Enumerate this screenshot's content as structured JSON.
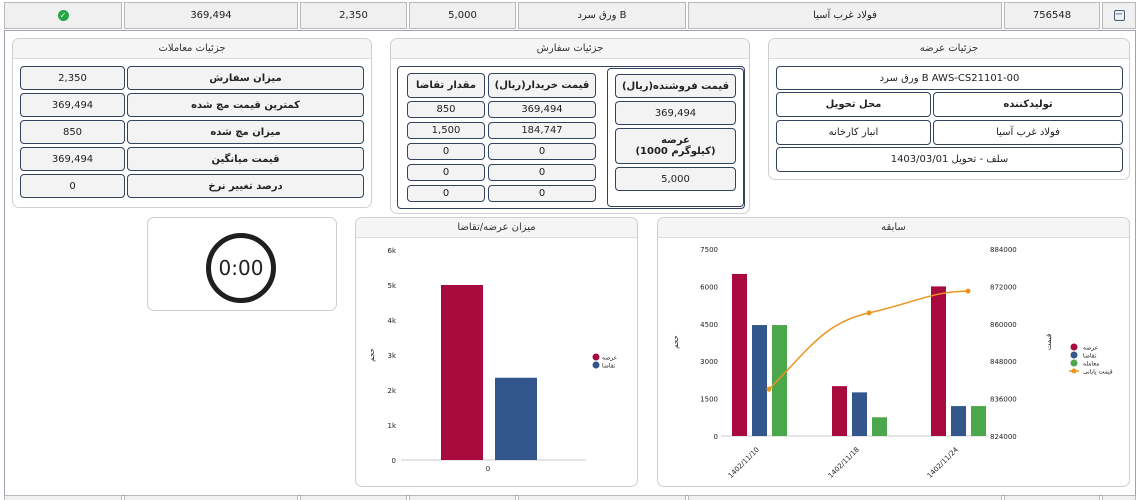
{
  "top_row": {
    "id": "756548",
    "supplier": "فولاد غرب آسیا",
    "product": "ورق سرد B",
    "quantity": "5,000",
    "volume": "2,350",
    "price": "369,494"
  },
  "transactions": {
    "title": "جزئیات معاملات",
    "rows": [
      {
        "label": "میزان سفارش",
        "value": "2,350"
      },
      {
        "label": "کمترین قیمت مچ شده",
        "value": "369,494"
      },
      {
        "label": "میزان مچ شده",
        "value": "850"
      },
      {
        "label": "قیمت میانگین",
        "value": "369,494"
      },
      {
        "label": "درصد تغییر نرخ",
        "value": "0"
      }
    ]
  },
  "order": {
    "title": "جزئیات سفارش",
    "seller_price_label": "قیمت فروشنده(ریال)",
    "seller_price": "369,494",
    "supply_label_1": "عرضه",
    "supply_label_2": "(1000 کیلوگرم)",
    "supply": "5,000",
    "buyer_price_label": "قیمت خریدار(ریال)",
    "demand_label": "مقدار تقاضا",
    "rows": [
      {
        "price": "369,494",
        "qty": "850"
      },
      {
        "price": "184,747",
        "qty": "1,500"
      },
      {
        "price": "0",
        "qty": "0"
      },
      {
        "price": "0",
        "qty": "0"
      },
      {
        "price": "0",
        "qty": "0"
      }
    ]
  },
  "offer": {
    "title": "جزئیات عرضه",
    "product_code": "ورق سرد B AWS-CS21101-00",
    "producer_label": "تولیدکننده",
    "location_label": "محل تحویل",
    "producer": "فولاد غرب آسیا",
    "location": "انبار کارخانه",
    "delivery": "سلف - تحویل 1403/03/01"
  },
  "timer": {
    "value": "0:00"
  },
  "colors": {
    "supply": "#a90a3e",
    "demand": "#33568c",
    "traded": "#4ca64c",
    "price": "#e8951e"
  },
  "chart_data": [
    {
      "type": "bar",
      "title": "میزان عرضه/تقاضا",
      "ylabel": "حجم",
      "categories": [
        "0"
      ],
      "series": [
        {
          "name": "عرضه",
          "values": [
            5000
          ]
        },
        {
          "name": "تقاضا",
          "values": [
            2350
          ]
        }
      ],
      "ylim": [
        0,
        6000
      ],
      "yticks": [
        "0",
        "1k",
        "2k",
        "3k",
        "4k",
        "5k",
        "6k"
      ],
      "grid": false,
      "legend": "right"
    },
    {
      "type": "bar",
      "title": "سابقه",
      "categories": [
        "1402/11/10",
        "1402/11/18",
        "1402/11/24"
      ],
      "series": [
        {
          "name": "عرضه",
          "values": [
            6500,
            2000,
            6000
          ]
        },
        {
          "name": "تقاضا",
          "values": [
            4450,
            1750,
            1200
          ]
        },
        {
          "name": "معامله",
          "values": [
            4450,
            750,
            1200
          ]
        },
        {
          "name": "قیمت پایانی",
          "type": "line",
          "axis": "right",
          "values": [
            839000,
            863500,
            870500
          ]
        }
      ],
      "ylabel": "حجم",
      "ylim": [
        0,
        7500
      ],
      "yticks": [
        "0",
        "1500",
        "3000",
        "4500",
        "6000",
        "7500"
      ],
      "y2label": "قیمت",
      "y2lim": [
        824000,
        884000
      ],
      "y2ticks": [
        "824000",
        "836000",
        "848000",
        "860000",
        "872000",
        "884000"
      ],
      "grid": false,
      "legend": "right"
    }
  ]
}
